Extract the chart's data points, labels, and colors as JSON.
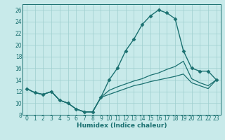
{
  "xlabel": "Humidex (Indice chaleur)",
  "xlim": [
    -0.5,
    23.5
  ],
  "ylim": [
    8,
    27
  ],
  "yticks": [
    8,
    10,
    12,
    14,
    16,
    18,
    20,
    22,
    24,
    26
  ],
  "xticks": [
    0,
    1,
    2,
    3,
    4,
    5,
    6,
    7,
    8,
    9,
    10,
    11,
    12,
    13,
    14,
    15,
    16,
    17,
    18,
    19,
    20,
    21,
    22,
    23
  ],
  "bg_color": "#c8eaea",
  "line_color": "#1a7070",
  "grid_color": "#9ecece",
  "lines": [
    {
      "x": [
        0,
        1,
        2,
        3,
        4,
        5,
        6,
        7,
        8,
        9,
        10,
        11,
        12,
        13,
        14,
        15,
        16,
        17,
        18,
        19,
        20,
        21,
        22,
        23
      ],
      "y": [
        12.5,
        11.8,
        11.5,
        12.0,
        10.5,
        10.0,
        9.0,
        8.5,
        8.5,
        11.0,
        14.0,
        16.0,
        19.0,
        21.0,
        23.5,
        25.0,
        26.0,
        25.5,
        24.5,
        19.0,
        16.0,
        15.5,
        15.5,
        14.0
      ],
      "marker": "D",
      "markersize": 2.5,
      "linewidth": 1.0
    },
    {
      "x": [
        0,
        1,
        2,
        3,
        4,
        5,
        6,
        7,
        8,
        9,
        10,
        11,
        12,
        13,
        14,
        15,
        16,
        17,
        18,
        19,
        20,
        21,
        22,
        23
      ],
      "y": [
        12.5,
        11.8,
        11.5,
        12.0,
        10.5,
        10.0,
        9.0,
        8.5,
        8.5,
        11.0,
        12.2,
        12.8,
        13.3,
        13.8,
        14.2,
        14.8,
        15.2,
        15.8,
        16.3,
        17.2,
        14.2,
        13.5,
        13.0,
        14.0
      ],
      "marker": null,
      "markersize": 0,
      "linewidth": 0.9
    },
    {
      "x": [
        0,
        1,
        2,
        3,
        4,
        5,
        6,
        7,
        8,
        9,
        10,
        11,
        12,
        13,
        14,
        15,
        16,
        17,
        18,
        19,
        20,
        21,
        22,
        23
      ],
      "y": [
        12.5,
        11.8,
        11.5,
        12.0,
        10.5,
        10.0,
        9.0,
        8.5,
        8.5,
        11.0,
        11.5,
        12.0,
        12.5,
        13.0,
        13.3,
        13.7,
        14.0,
        14.3,
        14.6,
        15.0,
        13.5,
        13.0,
        12.5,
        14.0
      ],
      "marker": null,
      "markersize": 0,
      "linewidth": 0.9
    }
  ]
}
